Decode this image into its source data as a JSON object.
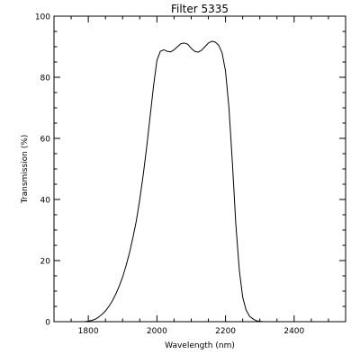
{
  "chart_data": {
    "type": "line",
    "title": "Filter 5335",
    "xlabel": "Wavelength (nm)",
    "ylabel": "Transmission (%)",
    "xlim": [
      1700,
      2550
    ],
    "ylim": [
      0,
      100
    ],
    "xticks": [
      1800,
      2000,
      2200,
      2400
    ],
    "yticks": [
      0,
      20,
      40,
      60,
      80,
      100
    ],
    "x_minor_step": 50,
    "y_minor_step": 5,
    "grid": false,
    "legend": "none",
    "line_color": "#000000",
    "series": [
      {
        "x": [
          1760,
          1790,
          1800,
          1810,
          1820,
          1830,
          1840,
          1850,
          1860,
          1870,
          1880,
          1890,
          1900,
          1910,
          1920,
          1930,
          1940,
          1950,
          1960,
          1970,
          1980,
          1990,
          2000,
          2010,
          2020,
          2030,
          2040,
          2050,
          2060,
          2070,
          2080,
          2090,
          2100,
          2110,
          2120,
          2130,
          2140,
          2150,
          2160,
          2170,
          2180,
          2190,
          2200,
          2210,
          2220,
          2230,
          2240,
          2250,
          2260,
          2270,
          2280,
          2290,
          2300,
          2310,
          2320,
          2330,
          2340,
          2360,
          2380,
          2400,
          2450,
          2530
        ],
        "y": [
          0,
          0,
          0.2,
          0.4,
          0.8,
          1.5,
          2.4,
          3.5,
          5.0,
          6.8,
          9.0,
          11.6,
          14.6,
          18.3,
          22.5,
          27.5,
          33.0,
          40.0,
          48.0,
          57.0,
          67.0,
          77.0,
          85.5,
          88.5,
          89.0,
          88.5,
          88.3,
          89.0,
          90.0,
          91.0,
          91.2,
          90.8,
          89.5,
          88.5,
          88.2,
          88.8,
          90.0,
          91.2,
          91.8,
          91.5,
          90.5,
          88.0,
          82.0,
          70.0,
          52.0,
          32.0,
          17.0,
          8.0,
          3.8,
          1.8,
          0.9,
          0.3,
          0.1,
          0,
          0,
          0,
          0,
          0,
          0,
          0,
          0,
          0
        ]
      }
    ]
  }
}
